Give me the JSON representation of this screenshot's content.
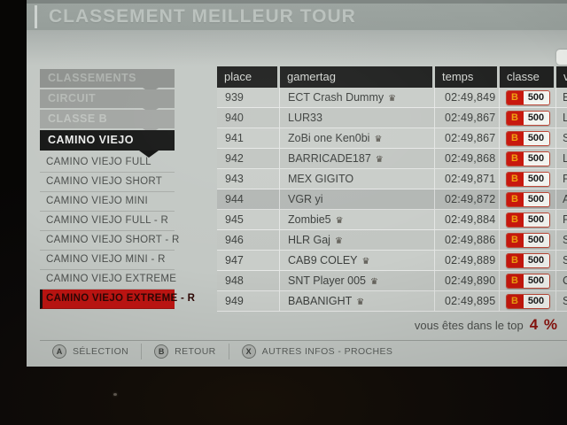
{
  "title": "CLASSEMENT MEILLEUR TOUR",
  "icons": {
    "crown_glyph": "♛"
  },
  "sidebar": {
    "groups": [
      {
        "label": "CLASSEMENTS"
      },
      {
        "label": "CIRCUIT"
      },
      {
        "label": "CLASSE B"
      },
      {
        "label": "CAMINO VIEJO"
      }
    ],
    "tracks": [
      {
        "label": "CAMINO VIEJO FULL",
        "selected": false
      },
      {
        "label": "CAMINO VIEJO SHORT",
        "selected": false
      },
      {
        "label": "CAMINO VIEJO MINI",
        "selected": false
      },
      {
        "label": "CAMINO VIEJO FULL - R",
        "selected": false
      },
      {
        "label": "CAMINO VIEJO SHORT - R",
        "selected": false
      },
      {
        "label": "CAMINO VIEJO MINI - R",
        "selected": false
      },
      {
        "label": "CAMINO VIEJO EXTREME",
        "selected": false
      },
      {
        "label": "CAMINO VIEJO EXTREME - R",
        "selected": true
      }
    ]
  },
  "table": {
    "columns": [
      "place",
      "gamertag",
      "temps",
      "classe",
      "v"
    ],
    "rows": [
      {
        "place": "939",
        "gamertag": "ECT Crash Dummy",
        "crown": true,
        "temps": "02:49,849",
        "classe": {
          "letter": "B",
          "pi": "500"
        },
        "voiture": "E",
        "highlighted": false
      },
      {
        "place": "940",
        "gamertag": "LUR33",
        "crown": false,
        "temps": "02:49,867",
        "classe": {
          "letter": "B",
          "pi": "500"
        },
        "voiture": "La",
        "highlighted": false
      },
      {
        "place": "941",
        "gamertag": "ZoBi one Ken0bi",
        "crown": true,
        "temps": "02:49,867",
        "classe": {
          "letter": "B",
          "pi": "500"
        },
        "voiture": "S",
        "highlighted": false
      },
      {
        "place": "942",
        "gamertag": "BARRICADE187",
        "crown": true,
        "temps": "02:49,868",
        "classe": {
          "letter": "B",
          "pi": "500"
        },
        "voiture": "La",
        "highlighted": false
      },
      {
        "place": "943",
        "gamertag": "MEX GIGITO",
        "crown": false,
        "temps": "02:49,871",
        "classe": {
          "letter": "B",
          "pi": "500"
        },
        "voiture": "Po",
        "highlighted": false
      },
      {
        "place": "944",
        "gamertag": "VGR yi",
        "crown": false,
        "temps": "02:49,872",
        "classe": {
          "letter": "B",
          "pi": "500"
        },
        "voiture": "Au",
        "highlighted": true
      },
      {
        "place": "945",
        "gamertag": "Zombie5",
        "crown": true,
        "temps": "02:49,884",
        "classe": {
          "letter": "B",
          "pi": "500"
        },
        "voiture": "Fai",
        "highlighted": false
      },
      {
        "place": "946",
        "gamertag": "HLR Gaj",
        "crown": true,
        "temps": "02:49,886",
        "classe": {
          "letter": "B",
          "pi": "500"
        },
        "voiture": "Sub",
        "highlighted": false
      },
      {
        "place": "947",
        "gamertag": "CAB9 COLEY",
        "crown": true,
        "temps": "02:49,889",
        "classe": {
          "letter": "B",
          "pi": "500"
        },
        "voiture": "Sub",
        "highlighted": false
      },
      {
        "place": "948",
        "gamertag": "SNT Player 005",
        "crown": true,
        "temps": "02:49,890",
        "classe": {
          "letter": "B",
          "pi": "500"
        },
        "voiture": "Che",
        "highlighted": false
      },
      {
        "place": "949",
        "gamertag": "BABANIGHT",
        "crown": true,
        "temps": "02:49,895",
        "classe": {
          "letter": "B",
          "pi": "500"
        },
        "voiture": "Sub",
        "highlighted": false
      }
    ]
  },
  "footer": {
    "note_text": "vous êtes dans le top",
    "note_value": "4 %"
  },
  "buttons": [
    {
      "key": "A",
      "label": "SÉLECTION"
    },
    {
      "key": "B",
      "label": "RETOUR"
    },
    {
      "key": "X",
      "label": "AUTRES INFOS - PROCHES"
    }
  ],
  "colors": {
    "class_badge_red": "#c8170d",
    "class_badge_letter_orange": "#efa010",
    "selected_track_red": "#bf1512",
    "top_value_red": "#8c130e"
  }
}
